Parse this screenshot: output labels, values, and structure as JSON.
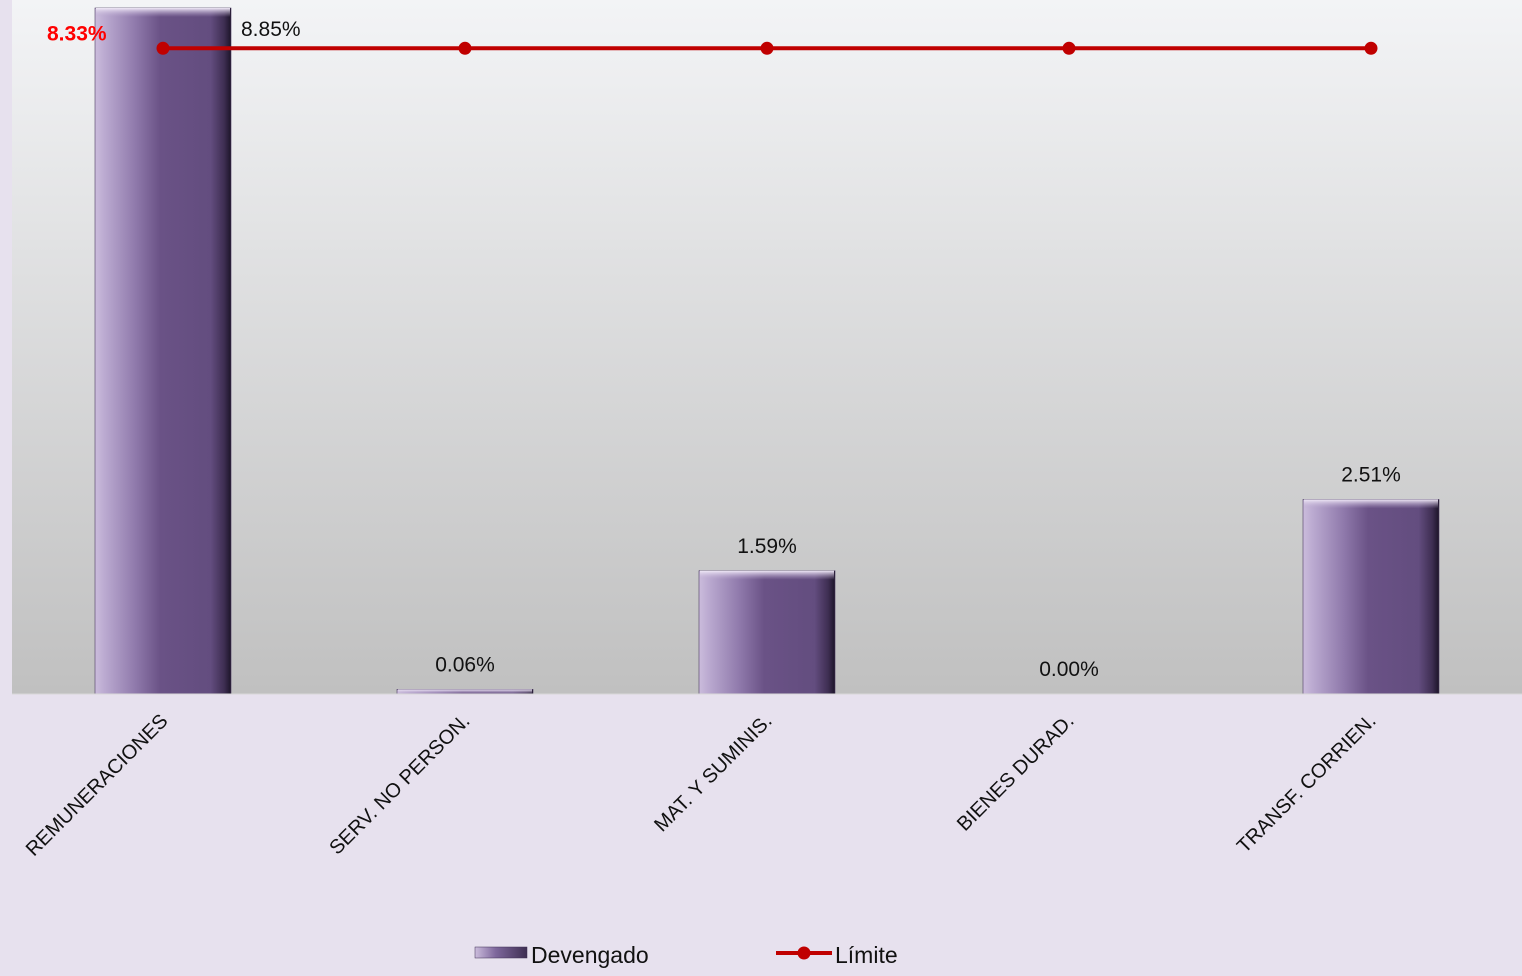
{
  "chart_data": {
    "type": "bar",
    "categories": [
      "REMUNERACIONES",
      "SERV. NO PERSON.",
      "MAT. Y SUMINIS.",
      "BIENES DURAD.",
      "TRANSF. CORRIEN."
    ],
    "series": [
      {
        "name": "Devengado",
        "type": "bar",
        "values": [
          8.85,
          0.06,
          1.59,
          0.0,
          2.51
        ],
        "labels": [
          "8.85%",
          "0.06%",
          "1.59%",
          "0.00%",
          "2.51%"
        ],
        "color": "#6a5286"
      },
      {
        "name": "Límite",
        "type": "line",
        "values": [
          8.33,
          8.33,
          8.33,
          8.33,
          8.33
        ],
        "labels": [
          "8.33%"
        ],
        "color": "#c00000"
      }
    ],
    "limit_label_color": "#ff0000",
    "ylim": [
      0,
      8.85
    ],
    "grid": false,
    "legend_position": "bottom-center",
    "plot_background": [
      "#f3f4f6",
      "#c0c0c0"
    ]
  }
}
